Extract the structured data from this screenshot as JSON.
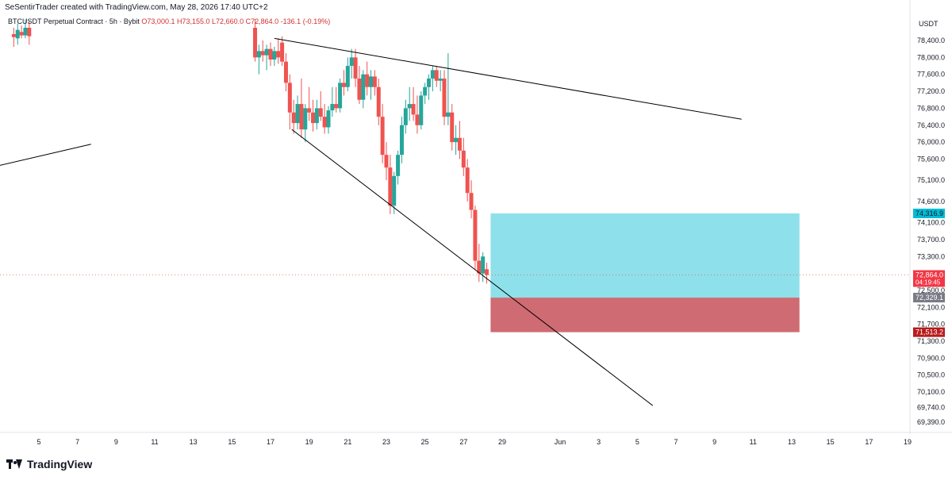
{
  "header": {
    "attribution": "SeSentirTrader created with TradingView.com, May 28, 2026 17:40 UTC+2"
  },
  "symbol_bar": {
    "symbol": "BTCUSDT Perpetual Contract · 5h · Bybit",
    "open": "O73,000.1",
    "high": "H73,155.0",
    "low": "L72,660.0",
    "close": "C72,864.0",
    "change": "-136.1 (-0.19%)"
  },
  "footer": {
    "brand": "TradingView"
  },
  "colors": {
    "up": "#26a69a",
    "down": "#ef5350",
    "profit_zone": "#8ee0ea",
    "loss_zone": "#cf6b72",
    "trendline": "#000000",
    "axis_text": "#131722",
    "last_price_label": "#f23645",
    "entry_label": "#787b86",
    "target_label": "#00bcd4",
    "stop_label": "#b71c1c"
  },
  "chart_data": {
    "type": "candlestick",
    "price_axis": {
      "currency_label": "USDT",
      "ticks": [
        78400,
        78000,
        77600,
        77200,
        76800,
        76400,
        76000,
        75600,
        75100,
        74600,
        74100,
        73700,
        73300,
        72900,
        72500,
        72100,
        71700,
        71300,
        70900,
        70500,
        70100,
        69740,
        69390
      ],
      "tick_labels": [
        "78,400.0",
        "78,000.0",
        "77,600.0",
        "77,200.0",
        "76,800.0",
        "76,400.0",
        "76,000.0",
        "75,600.0",
        "75,100.0",
        "74,600.0",
        "74,100.0",
        "73,700.0",
        "73,300.0",
        "72,900.0",
        "72,500.0",
        "72,100.0",
        "71,700.0",
        "71,300.0",
        "70,900.0",
        "70,500.0",
        "70,100.0",
        "69,740.0",
        "69,390.0"
      ]
    },
    "time_axis": {
      "ticks": [
        {
          "day": 5,
          "label": "5"
        },
        {
          "day": 7,
          "label": "7"
        },
        {
          "day": 9,
          "label": "9"
        },
        {
          "day": 11,
          "label": "11"
        },
        {
          "day": 13,
          "label": "13"
        },
        {
          "day": 15,
          "label": "15"
        },
        {
          "day": 17,
          "label": "17"
        },
        {
          "day": 19,
          "label": "19"
        },
        {
          "day": 21,
          "label": "21"
        },
        {
          "day": 23,
          "label": "23"
        },
        {
          "day": 25,
          "label": "25"
        },
        {
          "day": 27,
          "label": "27"
        },
        {
          "day": 29,
          "label": "29"
        },
        {
          "day": 32,
          "label": "Jun"
        },
        {
          "day": 34,
          "label": "3"
        },
        {
          "day": 36,
          "label": "5"
        },
        {
          "day": 38,
          "label": "7"
        },
        {
          "day": 40,
          "label": "9"
        },
        {
          "day": 42,
          "label": "11"
        },
        {
          "day": 44,
          "label": "13"
        },
        {
          "day": 46,
          "label": "15"
        },
        {
          "day": 48,
          "label": "17"
        },
        {
          "day": 50,
          "label": "19"
        }
      ]
    },
    "candles": [
      {
        "t": 3.7,
        "o": 78550,
        "h": 78700,
        "l": 78250,
        "c": 78480
      },
      {
        "t": 3.9,
        "o": 78450,
        "h": 78800,
        "l": 78300,
        "c": 78650
      },
      {
        "t": 4.1,
        "o": 78600,
        "h": 78750,
        "l": 78450,
        "c": 78520
      },
      {
        "t": 4.3,
        "o": 78520,
        "h": 78900,
        "l": 78450,
        "c": 78700
      },
      {
        "t": 4.5,
        "o": 78700,
        "h": 78850,
        "l": 78300,
        "c": 78500
      },
      {
        "t": 16.2,
        "o": 78700,
        "h": 78900,
        "l": 77900,
        "c": 78000
      },
      {
        "t": 16.4,
        "o": 78000,
        "h": 78300,
        "l": 77600,
        "c": 78150
      },
      {
        "t": 16.6,
        "o": 78150,
        "h": 78400,
        "l": 77900,
        "c": 78050
      },
      {
        "t": 16.8,
        "o": 78050,
        "h": 78300,
        "l": 77700,
        "c": 78200
      },
      {
        "t": 17.0,
        "o": 78200,
        "h": 78350,
        "l": 77800,
        "c": 77950
      },
      {
        "t": 17.2,
        "o": 77950,
        "h": 78250,
        "l": 77800,
        "c": 78150
      },
      {
        "t": 17.4,
        "o": 78150,
        "h": 78450,
        "l": 77850,
        "c": 78000
      },
      {
        "t": 17.6,
        "o": 78350,
        "h": 78500,
        "l": 77800,
        "c": 77900
      },
      {
        "t": 17.8,
        "o": 77900,
        "h": 78100,
        "l": 77200,
        "c": 77400
      },
      {
        "t": 18.0,
        "o": 77400,
        "h": 77600,
        "l": 76300,
        "c": 76700
      },
      {
        "t": 18.2,
        "o": 76700,
        "h": 77000,
        "l": 76200,
        "c": 76450
      },
      {
        "t": 18.4,
        "o": 76450,
        "h": 77100,
        "l": 76300,
        "c": 76900
      },
      {
        "t": 18.6,
        "o": 76900,
        "h": 77500,
        "l": 76100,
        "c": 76300
      },
      {
        "t": 18.8,
        "o": 76300,
        "h": 76900,
        "l": 76000,
        "c": 76800
      },
      {
        "t": 19.0,
        "o": 76800,
        "h": 77300,
        "l": 76500,
        "c": 76700
      },
      {
        "t": 19.2,
        "o": 76700,
        "h": 77000,
        "l": 76250,
        "c": 76450
      },
      {
        "t": 19.4,
        "o": 76450,
        "h": 77000,
        "l": 76300,
        "c": 76800
      },
      {
        "t": 19.6,
        "o": 76800,
        "h": 77200,
        "l": 76500,
        "c": 76600
      },
      {
        "t": 19.8,
        "o": 76600,
        "h": 76900,
        "l": 76200,
        "c": 76350
      },
      {
        "t": 20.0,
        "o": 76350,
        "h": 76850,
        "l": 76200,
        "c": 76750
      },
      {
        "t": 20.2,
        "o": 76750,
        "h": 77300,
        "l": 76600,
        "c": 76900
      },
      {
        "t": 20.4,
        "o": 76900,
        "h": 77300,
        "l": 76700,
        "c": 76800
      },
      {
        "t": 20.6,
        "o": 76800,
        "h": 77500,
        "l": 76700,
        "c": 77400
      },
      {
        "t": 20.8,
        "o": 77400,
        "h": 77700,
        "l": 77100,
        "c": 77300
      },
      {
        "t": 21.0,
        "o": 77300,
        "h": 78000,
        "l": 77200,
        "c": 77800
      },
      {
        "t": 21.2,
        "o": 77800,
        "h": 78200,
        "l": 77500,
        "c": 78000
      },
      {
        "t": 21.4,
        "o": 78000,
        "h": 78200,
        "l": 77300,
        "c": 77500
      },
      {
        "t": 21.6,
        "o": 77500,
        "h": 77800,
        "l": 76900,
        "c": 77000
      },
      {
        "t": 21.8,
        "o": 77000,
        "h": 77700,
        "l": 76800,
        "c": 77600
      },
      {
        "t": 22.0,
        "o": 77600,
        "h": 77900,
        "l": 77100,
        "c": 77300
      },
      {
        "t": 22.2,
        "o": 77300,
        "h": 77700,
        "l": 77000,
        "c": 77550
      },
      {
        "t": 22.4,
        "o": 77550,
        "h": 77700,
        "l": 77100,
        "c": 77300
      },
      {
        "t": 22.6,
        "o": 77300,
        "h": 77500,
        "l": 76400,
        "c": 76600
      },
      {
        "t": 22.8,
        "o": 76600,
        "h": 76900,
        "l": 75500,
        "c": 75700
      },
      {
        "t": 23.0,
        "o": 75700,
        "h": 76000,
        "l": 75100,
        "c": 75400
      },
      {
        "t": 23.2,
        "o": 75400,
        "h": 75700,
        "l": 74300,
        "c": 74500
      },
      {
        "t": 23.4,
        "o": 74500,
        "h": 75300,
        "l": 74300,
        "c": 75200
      },
      {
        "t": 23.6,
        "o": 75200,
        "h": 75800,
        "l": 75000,
        "c": 75700
      },
      {
        "t": 23.8,
        "o": 75700,
        "h": 76600,
        "l": 75500,
        "c": 76400
      },
      {
        "t": 24.0,
        "o": 76400,
        "h": 77000,
        "l": 76200,
        "c": 76800
      },
      {
        "t": 24.2,
        "o": 76800,
        "h": 77300,
        "l": 76500,
        "c": 76900
      },
      {
        "t": 24.4,
        "o": 76900,
        "h": 77300,
        "l": 76500,
        "c": 76650
      },
      {
        "t": 24.6,
        "o": 76650,
        "h": 77100,
        "l": 76200,
        "c": 76400
      },
      {
        "t": 24.8,
        "o": 76400,
        "h": 77200,
        "l": 76300,
        "c": 77100
      },
      {
        "t": 25.0,
        "o": 77100,
        "h": 77400,
        "l": 76900,
        "c": 77300
      },
      {
        "t": 25.2,
        "o": 77300,
        "h": 77600,
        "l": 77000,
        "c": 77500
      },
      {
        "t": 25.4,
        "o": 77500,
        "h": 77800,
        "l": 77200,
        "c": 77700
      },
      {
        "t": 25.6,
        "o": 77700,
        "h": 77800,
        "l": 77300,
        "c": 77450
      },
      {
        "t": 25.8,
        "o": 77450,
        "h": 77700,
        "l": 77200,
        "c": 77500
      },
      {
        "t": 26.0,
        "o": 77500,
        "h": 77700,
        "l": 76400,
        "c": 76600
      },
      {
        "t": 26.2,
        "o": 76600,
        "h": 78100,
        "l": 76400,
        "c": 76700
      },
      {
        "t": 26.4,
        "o": 76700,
        "h": 76900,
        "l": 75800,
        "c": 76000
      },
      {
        "t": 26.6,
        "o": 76000,
        "h": 76400,
        "l": 75700,
        "c": 76100
      },
      {
        "t": 26.8,
        "o": 76100,
        "h": 76500,
        "l": 75600,
        "c": 75800
      },
      {
        "t": 27.0,
        "o": 75800,
        "h": 76100,
        "l": 75200,
        "c": 75400
      },
      {
        "t": 27.2,
        "o": 75400,
        "h": 75600,
        "l": 74600,
        "c": 74800
      },
      {
        "t": 27.4,
        "o": 74800,
        "h": 75100,
        "l": 74200,
        "c": 74400
      },
      {
        "t": 27.6,
        "o": 74400,
        "h": 74500,
        "l": 73000,
        "c": 73200
      },
      {
        "t": 27.8,
        "o": 73200,
        "h": 73600,
        "l": 72700,
        "c": 72900
      },
      {
        "t": 28.0,
        "o": 72900,
        "h": 73400,
        "l": 72700,
        "c": 73300
      },
      {
        "t": 28.2,
        "o": 73000,
        "h": 73155,
        "l": 72660,
        "c": 72864
      }
    ],
    "trendlines": [
      {
        "name": "upper-wedge-line",
        "x1": 17.2,
        "y1": 78450,
        "x2": 41.4,
        "y2": 76540
      },
      {
        "name": "lower-wedge-line",
        "x1": 18.1,
        "y1": 76300,
        "x2": 36.8,
        "y2": 69780
      },
      {
        "name": "left-line",
        "x1": 2.5,
        "y1": 75400,
        "x2": 7.7,
        "y2": 75950
      }
    ],
    "position": {
      "type": "long",
      "start": 28.4,
      "end": 44.4,
      "target": 74316.9,
      "entry": 72329.1,
      "stop": 71513.2,
      "target_label": "74,316.9",
      "entry_label": "72,329.1",
      "stop_label": "71,513.2"
    },
    "last_price": {
      "value": 72864.0,
      "label": "72,864.0",
      "countdown": "04:19:45"
    }
  }
}
